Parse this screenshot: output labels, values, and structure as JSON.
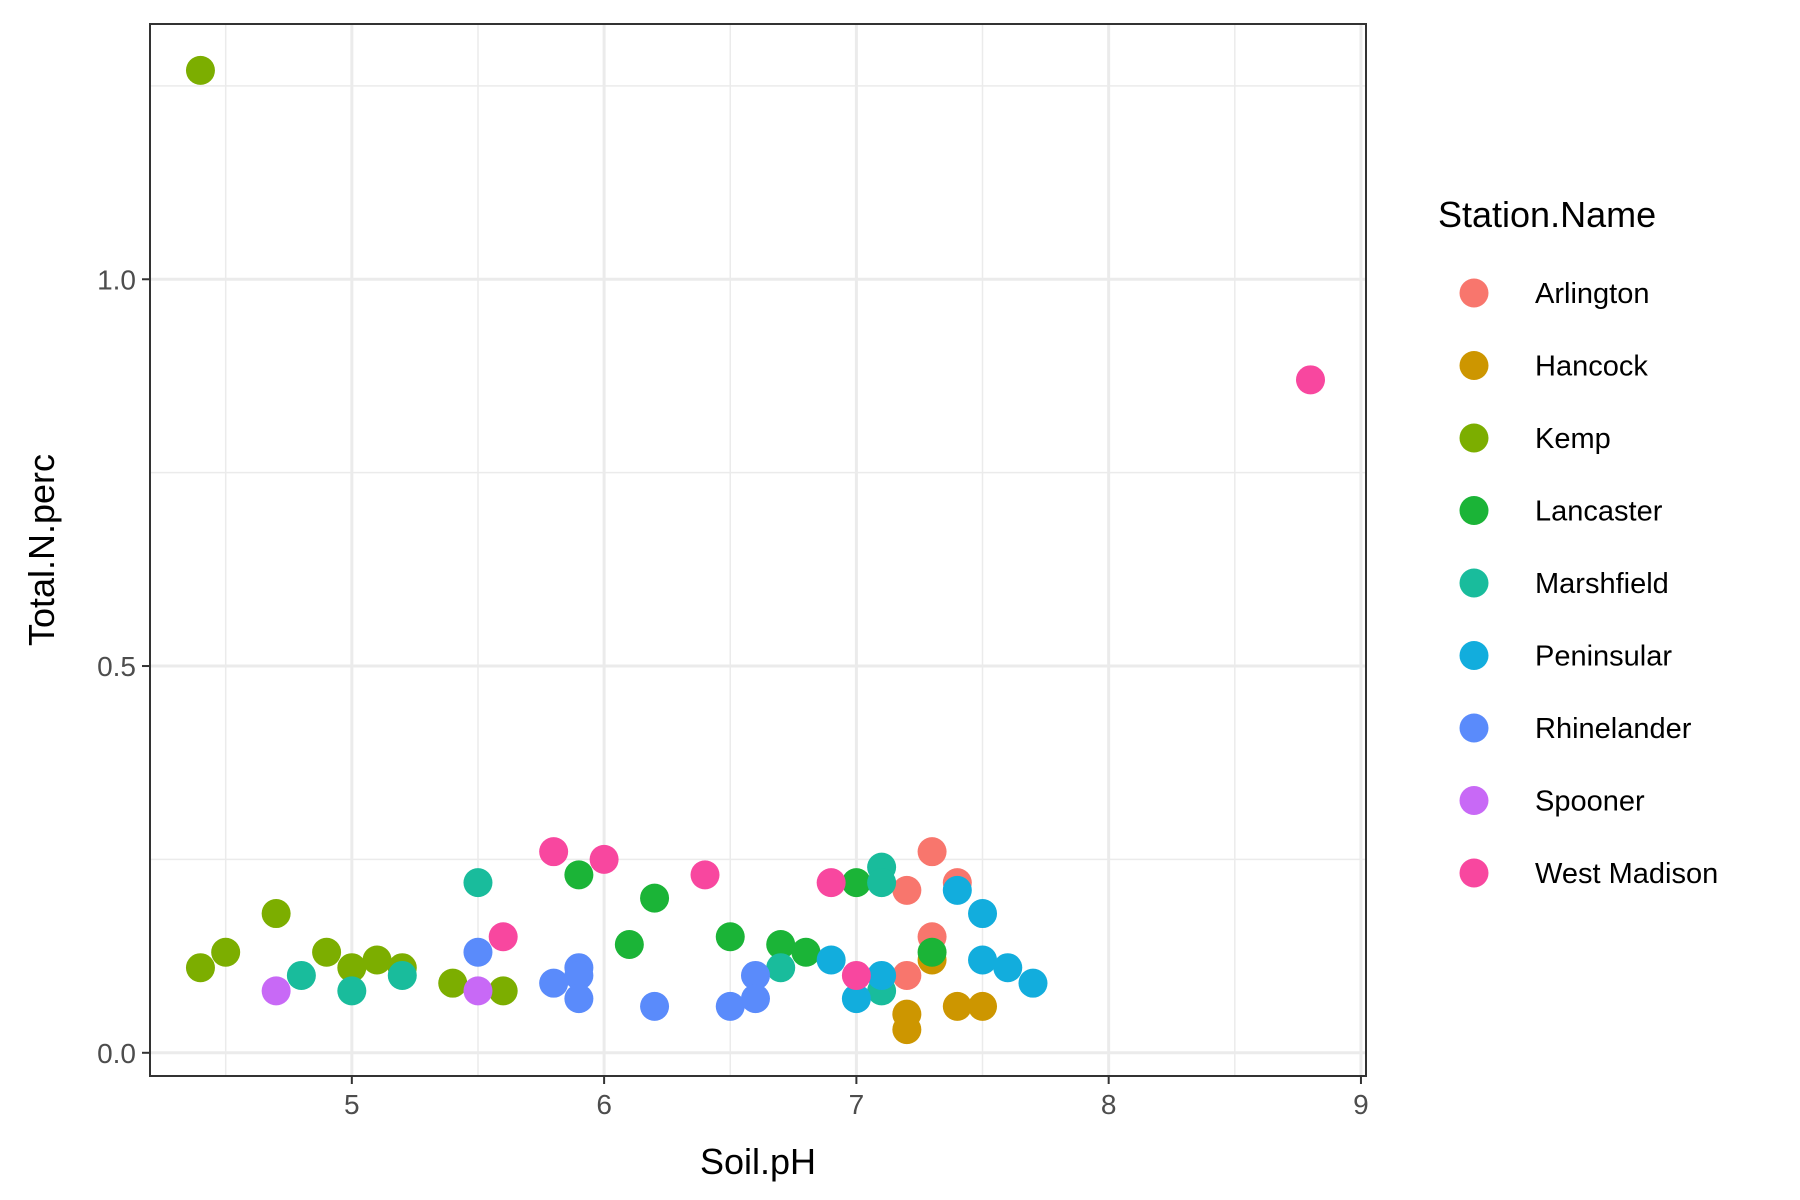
{
  "chart_data": {
    "type": "scatter",
    "xlabel": "Soil.pH",
    "ylabel": "Total.N.perc",
    "xlim": [
      4.2,
      9.02
    ],
    "ylim": [
      -0.03,
      1.33
    ],
    "x_ticks": [
      5,
      6,
      7,
      8,
      9
    ],
    "x_tick_labels": [
      "5",
      "6",
      "7",
      "8",
      "9"
    ],
    "x_minor_ticks": [
      4.5,
      5.5,
      6.5,
      7.5,
      8.5
    ],
    "y_ticks": [
      0,
      0.5,
      1
    ],
    "y_tick_labels": [
      "0.0",
      "0.5",
      "1.0"
    ],
    "y_minor_ticks": [
      0.25,
      0.75,
      1.25
    ],
    "grid": true,
    "legend": {
      "title": "Station.Name",
      "position": "right"
    },
    "series": [
      {
        "name": "Arlington",
        "color": "#F8766D",
        "points": [
          [
            7.3,
            0.26
          ],
          [
            7.4,
            0.22
          ],
          [
            7.2,
            0.21
          ],
          [
            7.3,
            0.15
          ],
          [
            7.2,
            0.1
          ]
        ]
      },
      {
        "name": "Hancock",
        "color": "#CD9600",
        "points": [
          [
            7.3,
            0.12
          ],
          [
            7.4,
            0.06
          ],
          [
            7.5,
            0.06
          ],
          [
            7.2,
            0.05
          ],
          [
            7.2,
            0.03
          ]
        ]
      },
      {
        "name": "Kemp",
        "color": "#7CAE00",
        "points": [
          [
            4.4,
            1.27
          ],
          [
            4.7,
            0.18
          ],
          [
            4.4,
            0.11
          ],
          [
            4.5,
            0.13
          ],
          [
            4.9,
            0.13
          ],
          [
            5.0,
            0.11
          ],
          [
            5.1,
            0.12
          ],
          [
            5.2,
            0.11
          ],
          [
            5.4,
            0.09
          ],
          [
            5.6,
            0.08
          ]
        ]
      },
      {
        "name": "Lancaster",
        "color": "#1BB437",
        "points": [
          [
            5.9,
            0.23
          ],
          [
            6.2,
            0.2
          ],
          [
            6.1,
            0.14
          ],
          [
            6.5,
            0.15
          ],
          [
            6.7,
            0.14
          ],
          [
            6.8,
            0.13
          ],
          [
            7.0,
            0.22
          ],
          [
            7.3,
            0.13
          ]
        ]
      },
      {
        "name": "Marshfield",
        "color": "#19BC9C",
        "points": [
          [
            4.8,
            0.1
          ],
          [
            5.0,
            0.08
          ],
          [
            5.2,
            0.1
          ],
          [
            5.5,
            0.22
          ],
          [
            6.7,
            0.11
          ],
          [
            7.1,
            0.24
          ],
          [
            7.1,
            0.22
          ],
          [
            7.1,
            0.08
          ]
        ]
      },
      {
        "name": "Peninsular",
        "color": "#12ADDD",
        "points": [
          [
            6.9,
            0.12
          ],
          [
            7.0,
            0.07
          ],
          [
            7.1,
            0.1
          ],
          [
            7.4,
            0.21
          ],
          [
            7.5,
            0.18
          ],
          [
            7.5,
            0.12
          ],
          [
            7.6,
            0.11
          ],
          [
            7.7,
            0.09
          ]
        ]
      },
      {
        "name": "Rhinelander",
        "color": "#5A8BFB",
        "points": [
          [
            5.5,
            0.13
          ],
          [
            5.8,
            0.09
          ],
          [
            5.9,
            0.11
          ],
          [
            5.9,
            0.1
          ],
          [
            5.9,
            0.07
          ],
          [
            6.2,
            0.06
          ],
          [
            6.5,
            0.06
          ],
          [
            6.6,
            0.1
          ],
          [
            6.6,
            0.07
          ]
        ]
      },
      {
        "name": "Spooner",
        "color": "#C869F6",
        "points": [
          [
            4.7,
            0.08
          ],
          [
            5.5,
            0.08
          ]
        ]
      },
      {
        "name": "West Madison",
        "color": "#F8479F",
        "points": [
          [
            5.6,
            0.15
          ],
          [
            5.8,
            0.26
          ],
          [
            6.0,
            0.25
          ],
          [
            6.4,
            0.23
          ],
          [
            6.9,
            0.22
          ],
          [
            7.0,
            0.1
          ],
          [
            8.8,
            0.87
          ]
        ]
      }
    ]
  }
}
